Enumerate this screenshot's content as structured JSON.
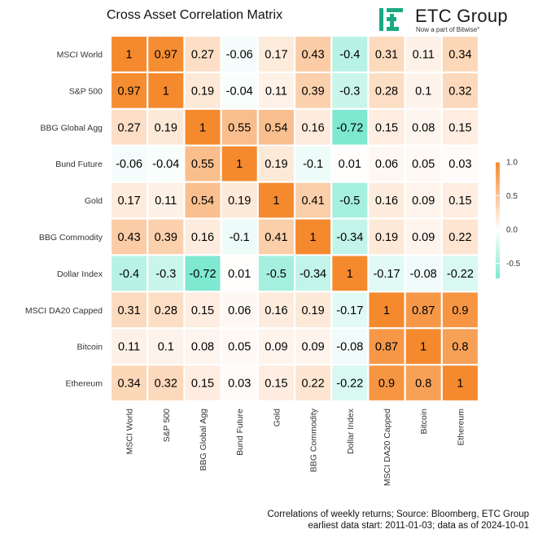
{
  "chart_data": {
    "type": "heatmap",
    "title": "Cross Asset Correlation Matrix",
    "row_labels": [
      "MSCI World",
      "S&P 500",
      "BBG Global Agg",
      "Bund Future",
      "Gold",
      "BBG Commodity",
      "Dollar Index",
      "MSCI DA20 Capped",
      "Bitcoin",
      "Ethereum"
    ],
    "col_labels": [
      "MSCI World",
      "S&P 500",
      "BBG Global Agg",
      "Bund Future",
      "Gold",
      "BBG Commodity",
      "Dollar Index",
      "MSCI DA20 Capped",
      "Bitcoin",
      "Ethereum"
    ],
    "values": [
      [
        1,
        0.97,
        0.27,
        -0.06,
        0.17,
        0.43,
        -0.4,
        0.31,
        0.11,
        0.34
      ],
      [
        0.97,
        1,
        0.19,
        -0.04,
        0.11,
        0.39,
        -0.3,
        0.28,
        0.1,
        0.32
      ],
      [
        0.27,
        0.19,
        1,
        0.55,
        0.54,
        0.16,
        -0.72,
        0.15,
        0.08,
        0.15
      ],
      [
        -0.06,
        -0.04,
        0.55,
        1,
        0.19,
        -0.1,
        0.01,
        0.06,
        0.05,
        0.03
      ],
      [
        0.17,
        0.11,
        0.54,
        0.19,
        1,
        0.41,
        -0.5,
        0.16,
        0.09,
        0.15
      ],
      [
        0.43,
        0.39,
        0.16,
        -0.1,
        0.41,
        1,
        -0.34,
        0.19,
        0.09,
        0.22
      ],
      [
        -0.4,
        -0.3,
        -0.72,
        0.01,
        -0.5,
        -0.34,
        1,
        -0.17,
        -0.08,
        -0.22
      ],
      [
        0.31,
        0.28,
        0.15,
        0.06,
        0.16,
        0.19,
        -0.17,
        1,
        0.87,
        0.9
      ],
      [
        0.11,
        0.1,
        0.08,
        0.05,
        0.09,
        0.09,
        -0.08,
        0.87,
        1,
        0.8
      ],
      [
        0.34,
        0.32,
        0.15,
        0.03,
        0.15,
        0.22,
        -0.22,
        0.9,
        0.8,
        1
      ]
    ],
    "color_scale": {
      "min": -0.72,
      "max": 1,
      "low_color": "#7ee8d0",
      "mid_color": "#ffffff",
      "high_color": "#f5892d"
    },
    "legend": {
      "position": "right",
      "ticks": [
        "1.0",
        "0.5",
        "0.0",
        "-0.5"
      ],
      "tick_values": [
        1,
        0.5,
        0,
        -0.5
      ]
    }
  },
  "brand": {
    "name": "ETC Group",
    "tagline": "Now a part of Bitwise°",
    "accent": "#19a983"
  },
  "footer": {
    "line1": "Correlations of weekly returns; Source: Bloomberg, ETC Group",
    "line2": "earliest data start: 2011-01-03; data as of 2024-10-01"
  }
}
